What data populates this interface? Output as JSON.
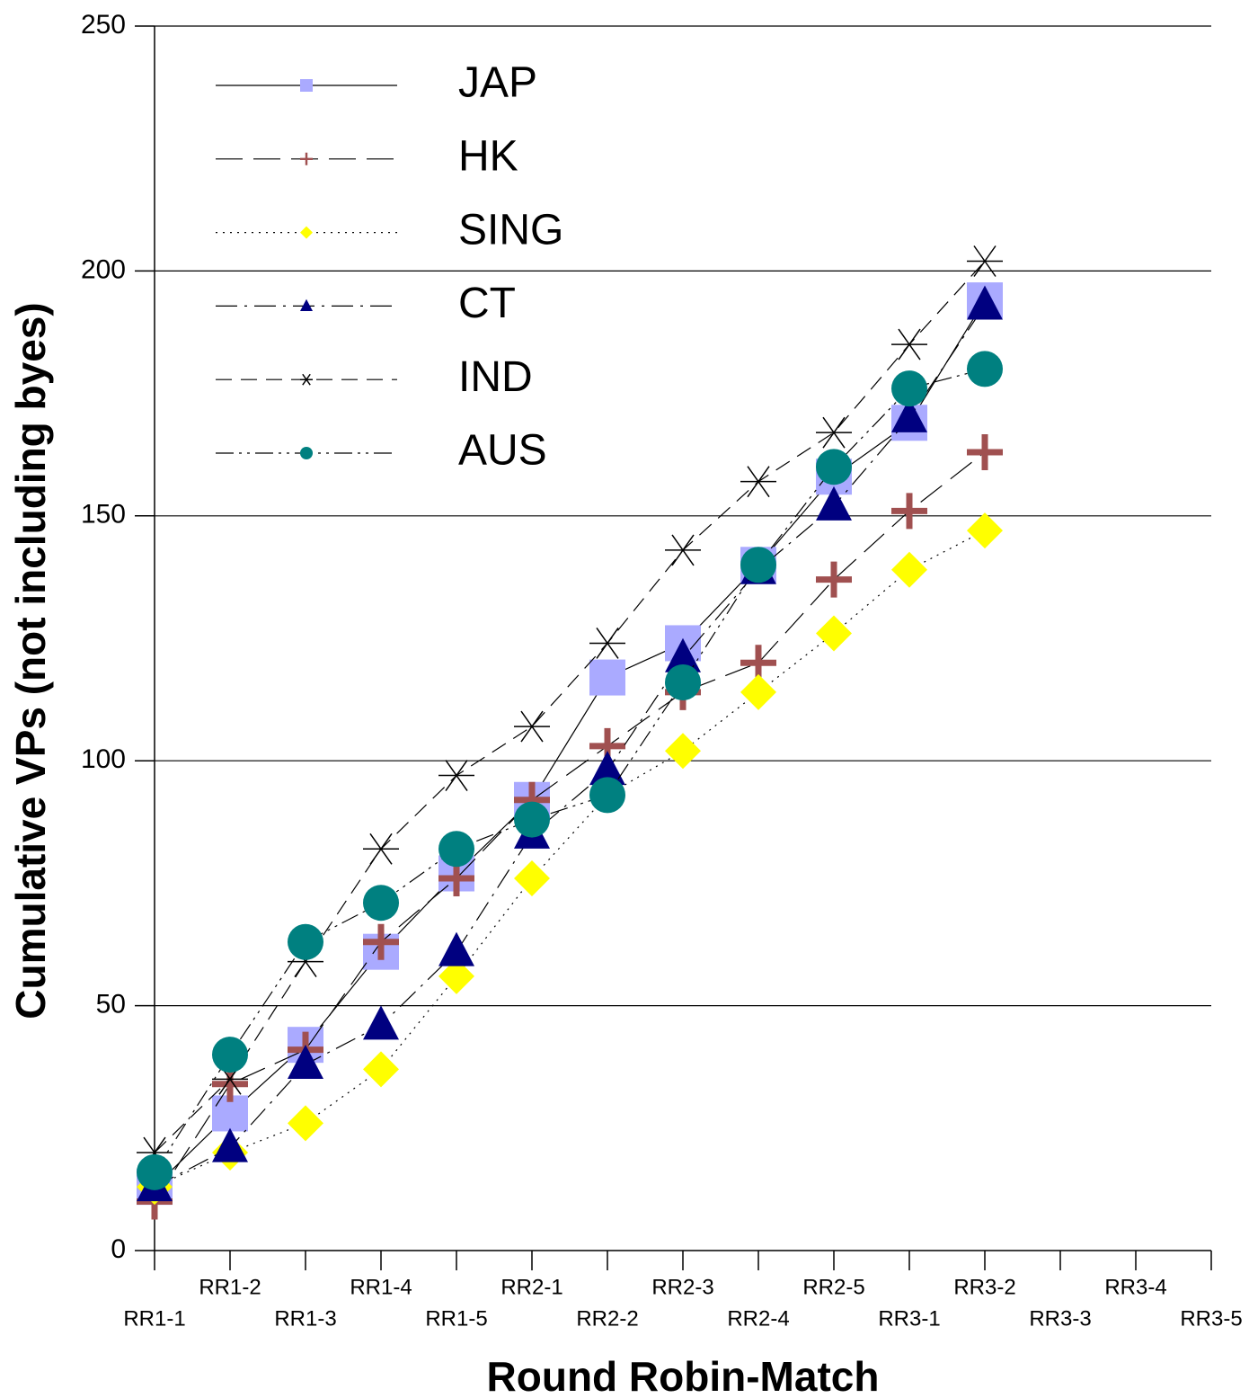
{
  "chart_data": {
    "type": "line",
    "x_label": "Round Robin-Match",
    "y_label": "Cumulative VPs (not including byes)",
    "categories": [
      "RR1-1",
      "RR1-2",
      "RR1-3",
      "RR1-4",
      "RR1-5",
      "RR2-1",
      "RR2-2",
      "RR2-3",
      "RR2-4",
      "RR2-5",
      "RR3-1",
      "RR3-2",
      "RR3-3",
      "RR3-4",
      "RR3-5"
    ],
    "ylim": [
      0,
      250
    ],
    "yticks": [
      0,
      50,
      100,
      150,
      200,
      250
    ],
    "grid": true,
    "series": [
      {
        "name": "JAP",
        "color": "#aaaaff",
        "marker": "square",
        "dash": "solid",
        "values": [
          13,
          28,
          42,
          61,
          77,
          92,
          117,
          124,
          140,
          158,
          169,
          194,
          null,
          null,
          null
        ]
      },
      {
        "name": "HK",
        "color": "#a05050",
        "marker": "plus",
        "dash": "longdash",
        "values": [
          10,
          34,
          41,
          63,
          76,
          92,
          103,
          114,
          120,
          137,
          151,
          163,
          null,
          null,
          null
        ]
      },
      {
        "name": "SING",
        "color": "#ffff00",
        "marker": "diamond",
        "dash": "dot",
        "values": [
          13,
          20,
          26,
          37,
          56,
          76,
          93,
          102,
          114,
          126,
          139,
          147,
          null,
          null,
          null
        ]
      },
      {
        "name": "CT",
        "color": "#000080",
        "marker": "triangle",
        "dash": "dashdot",
        "values": [
          13,
          21,
          38,
          46,
          61,
          85,
          98,
          121,
          139,
          152,
          170,
          193,
          null,
          null,
          null
        ]
      },
      {
        "name": "IND",
        "color": "#000000",
        "marker": "star",
        "dash": "dash",
        "values": [
          20,
          35,
          59,
          82,
          97,
          107,
          124,
          143,
          157,
          167,
          185,
          202,
          null,
          null,
          null
        ]
      },
      {
        "name": "AUS",
        "color": "#008080",
        "marker": "circle",
        "dash": "dashdotdot",
        "values": [
          16,
          40,
          63,
          71,
          82,
          88,
          93,
          116,
          140,
          160,
          176,
          180,
          null,
          null,
          null
        ]
      }
    ]
  }
}
